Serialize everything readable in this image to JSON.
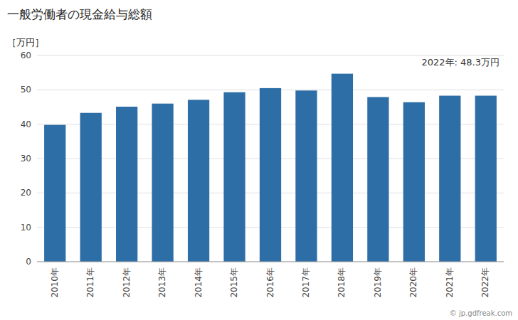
{
  "chart_data": {
    "type": "bar",
    "title": "一般労働者の現金給与総額",
    "ylabel": "［万円］",
    "annotation": "2022年: 48.3万円",
    "watermark": "© jp.gdfreak.com",
    "categories": [
      "2010年",
      "2011年",
      "2012年",
      "2013年",
      "2014年",
      "2015年",
      "2016年",
      "2017年",
      "2018年",
      "2019年",
      "2020年",
      "2021年",
      "2022年"
    ],
    "values": [
      39.8,
      43.3,
      45.1,
      46.0,
      47.1,
      49.3,
      50.5,
      49.8,
      54.7,
      47.9,
      46.4,
      48.3,
      48.3
    ],
    "color": "#2e6ea6",
    "ylim": [
      0,
      60
    ],
    "yticks": [
      0,
      10,
      20,
      30,
      40,
      50,
      60
    ],
    "grid": true
  }
}
